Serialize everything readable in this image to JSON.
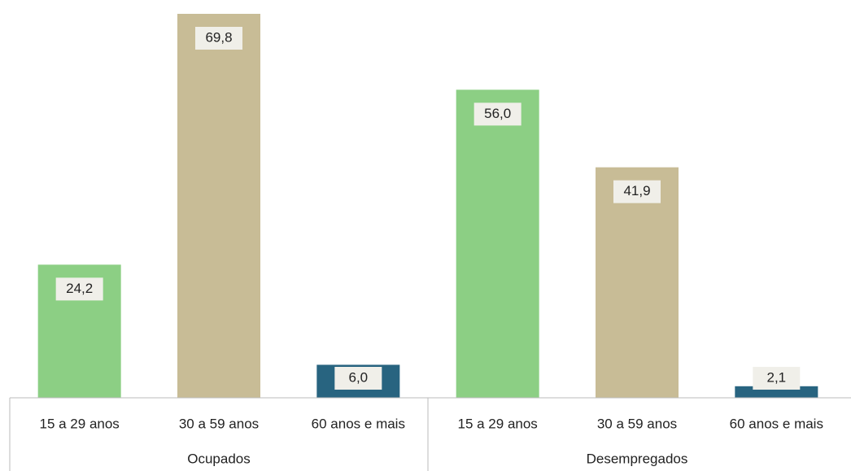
{
  "chart_data": {
    "type": "bar",
    "colors": [
      "#8ccf84",
      "#c8bc96",
      "#286480"
    ],
    "groups": [
      {
        "name": "Ocupados",
        "categories": [
          "15 a 29 anos",
          "30 a 59 anos",
          "60 anos e mais"
        ],
        "values": [
          24.2,
          69.8,
          6.0
        ],
        "value_labels": [
          "24,2",
          "69,8",
          "6,0"
        ]
      },
      {
        "name": "Desempregados",
        "categories": [
          "15 a 29 anos",
          "30 a 59 anos",
          "60 anos e mais"
        ],
        "values": [
          56.0,
          41.9,
          2.1
        ],
        "value_labels": [
          "56,0",
          "41,9",
          "2,1"
        ]
      }
    ]
  }
}
